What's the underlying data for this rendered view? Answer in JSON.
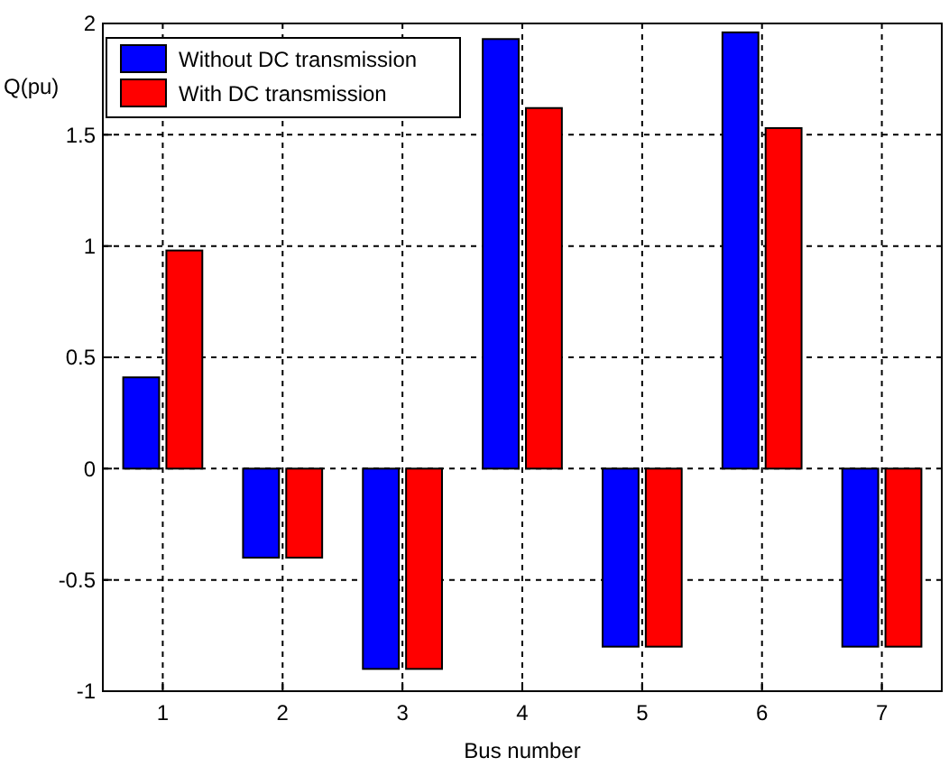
{
  "chart_data": {
    "type": "bar",
    "xlabel": "Bus number",
    "ylabel": "Q(pu)",
    "categories": [
      "1",
      "2",
      "3",
      "4",
      "5",
      "6",
      "7"
    ],
    "series": [
      {
        "name": "Without DC transmission",
        "color": "#0000ff",
        "values": [
          0.41,
          -0.4,
          -0.9,
          1.93,
          -0.8,
          1.96,
          -0.8
        ]
      },
      {
        "name": "With DC transmission",
        "color": "#ff0000",
        "values": [
          0.98,
          -0.4,
          -0.9,
          1.62,
          -0.8,
          1.53,
          -0.8
        ]
      }
    ],
    "ylim": [
      -1,
      2
    ],
    "yticks": [
      -1,
      -0.5,
      0,
      0.5,
      1,
      1.5,
      2
    ],
    "grid": true,
    "legend": "top left"
  }
}
